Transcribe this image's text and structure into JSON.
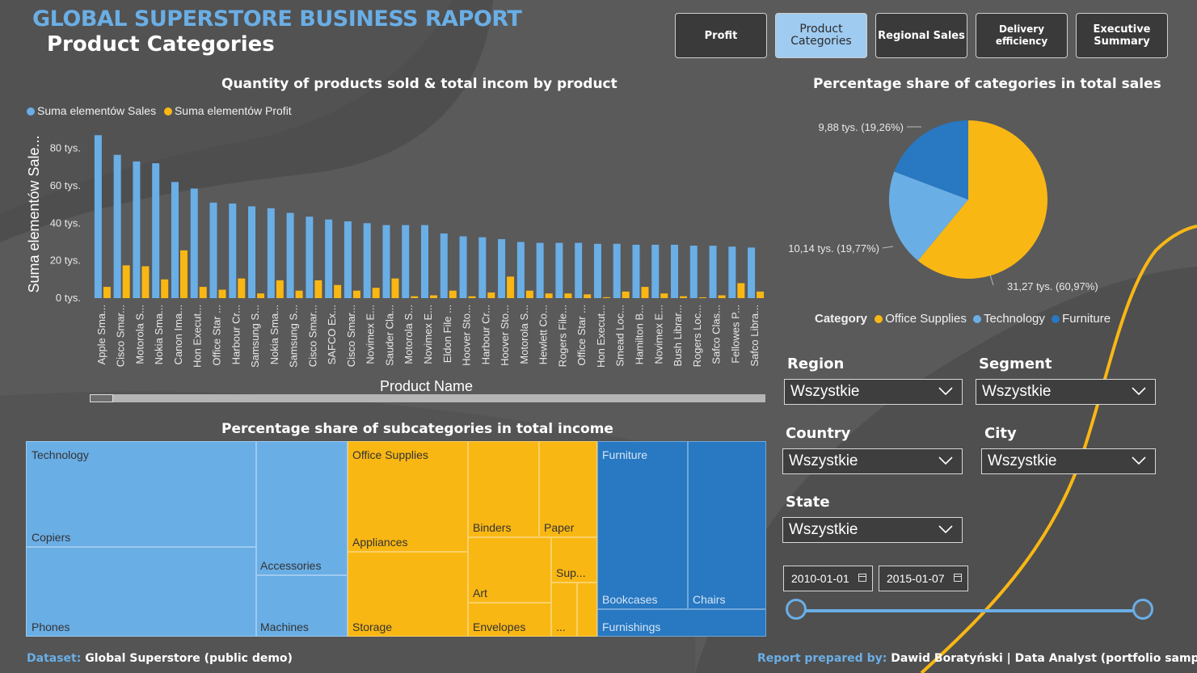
{
  "header": {
    "title": "GLOBAL SUPERSTORE BUSINESS RAPORT",
    "subtitle": "Product Categories"
  },
  "nav": [
    {
      "label": "Profit",
      "active": false
    },
    {
      "label": "Product\nCategories",
      "active": true
    },
    {
      "label": "Regional Sales",
      "active": false
    },
    {
      "label": "Delivery efficiency",
      "active": false
    },
    {
      "label": "Executive\nSummary",
      "active": false
    }
  ],
  "bar_chart": {
    "title": "Quantity of products sold & total incom by product",
    "legend": [
      "Suma elementów Sales",
      "Suma elementów Profit"
    ]
  },
  "pie_chart": {
    "title": "Percentage share of categories in total sales",
    "legend_title": "Category"
  },
  "treemap": {
    "title": "Percentage share of subcategories in total income"
  },
  "chart_data": [
    {
      "type": "bar",
      "title": "Quantity of products sold & total incom by product",
      "xlabel": "Product Name",
      "ylabel": "Suma elementów Sale...",
      "yticks": [
        "0 tys.",
        "20 tys.",
        "40 tys.",
        "60 tys.",
        "80 tys."
      ],
      "ylim": [
        0,
        88000
      ],
      "categories": [
        "Apple Sma...",
        "Cisco Smar...",
        "Motorola S...",
        "Nokia Sma...",
        "Canon Ima...",
        "Hon Execut...",
        "Office Star ...",
        "Harbour Cr...",
        "Samsung S...",
        "Nokia Sma...",
        "Samsung S...",
        "Cisco Smar...",
        "SAFCO Ex...",
        "Cisco Smar...",
        "Novimex E...",
        "Sauder Cla...",
        "Motorola S...",
        "Novimex E...",
        "Eldon File ...",
        "Hoover Sto...",
        "Harbour Cr...",
        "Hoover Sto...",
        "Motorola S...",
        "Hewlett Co...",
        "Rogers File...",
        "Office Star ...",
        "Hon Execut...",
        "Smead Loc...",
        "Hamilton B...",
        "Novimex E...",
        "Bush Librar...",
        "Rogers Loc...",
        "Safco Clas...",
        "Fellowes P...",
        "Safco Libra..."
      ],
      "series": [
        {
          "name": "Suma elementów Sales",
          "color": "#6aaee6",
          "values": [
            87000,
            76500,
            73000,
            72000,
            62000,
            58500,
            51000,
            50500,
            49000,
            48000,
            45500,
            43500,
            42000,
            41000,
            40000,
            39000,
            39000,
            39000,
            34500,
            33000,
            32500,
            31500,
            30000,
            29500,
            29500,
            29500,
            29000,
            29000,
            28500,
            28500,
            28500,
            28000,
            28000,
            27500,
            27000
          ]
        },
        {
          "name": "Suma elementów Profit",
          "color": "#f9b714",
          "values": [
            6000,
            17500,
            17000,
            10000,
            25500,
            6000,
            4500,
            10500,
            2500,
            9500,
            4000,
            9500,
            7000,
            4000,
            5500,
            10500,
            1000,
            1500,
            4000,
            1000,
            3000,
            11500,
            4000,
            2500,
            2500,
            2000,
            500,
            3500,
            6000,
            2500,
            1000,
            0,
            1500,
            8000,
            3500
          ]
        }
      ]
    },
    {
      "type": "pie",
      "title": "Percentage share of categories in total sales",
      "legend_title": "Category",
      "slices": [
        {
          "name": "Office Supplies",
          "value": 31270,
          "label": "31,27 tys. (60,97%)",
          "percent": 60.97,
          "color": "#f9b714"
        },
        {
          "name": "Technology",
          "value": 10140,
          "label": "10,14 tys. (19,77%)",
          "percent": 19.77,
          "color": "#6aaee6"
        },
        {
          "name": "Furniture",
          "value": 9880,
          "label": "9,88 tys. (19,26%)",
          "percent": 19.26,
          "color": "#2878c2"
        }
      ]
    }
  ],
  "treemap_data": {
    "groups": [
      {
        "name": "Technology",
        "color": "#6aaee6",
        "items": [
          "Copiers",
          "Phones",
          "Accessories",
          "Machines"
        ]
      },
      {
        "name": "Office Supplies",
        "color": "#f9b714",
        "items": [
          "Appliances",
          "Storage",
          "Binders",
          "Paper",
          "Art",
          "Envelopes",
          "Sup...",
          "..."
        ]
      },
      {
        "name": "Furniture",
        "color": "#2878c2",
        "items": [
          "Bookcases",
          "Chairs",
          "Furnishings"
        ]
      }
    ]
  },
  "filters": {
    "region": {
      "label": "Region",
      "value": "Wszystkie"
    },
    "segment": {
      "label": "Segment",
      "value": "Wszystkie"
    },
    "country": {
      "label": "Country",
      "value": "Wszystkie"
    },
    "city": {
      "label": "City",
      "value": "Wszystkie"
    },
    "state": {
      "label": "State",
      "value": "Wszystkie"
    },
    "date_start": "2010-01-01",
    "date_end": "2015-01-07"
  },
  "footer": {
    "dataset_key": "Dataset:",
    "dataset_value": "Global Superstore (public demo)",
    "author_key": "Report prepared by:",
    "author_value": "Dawid Boratyński | Data Analyst (portfolio sample)"
  },
  "colors": {
    "background": "#5a5a5a",
    "accent_blue": "#6aaee6",
    "accent_yellow": "#f9b714",
    "dark_blue": "#2878c2"
  }
}
